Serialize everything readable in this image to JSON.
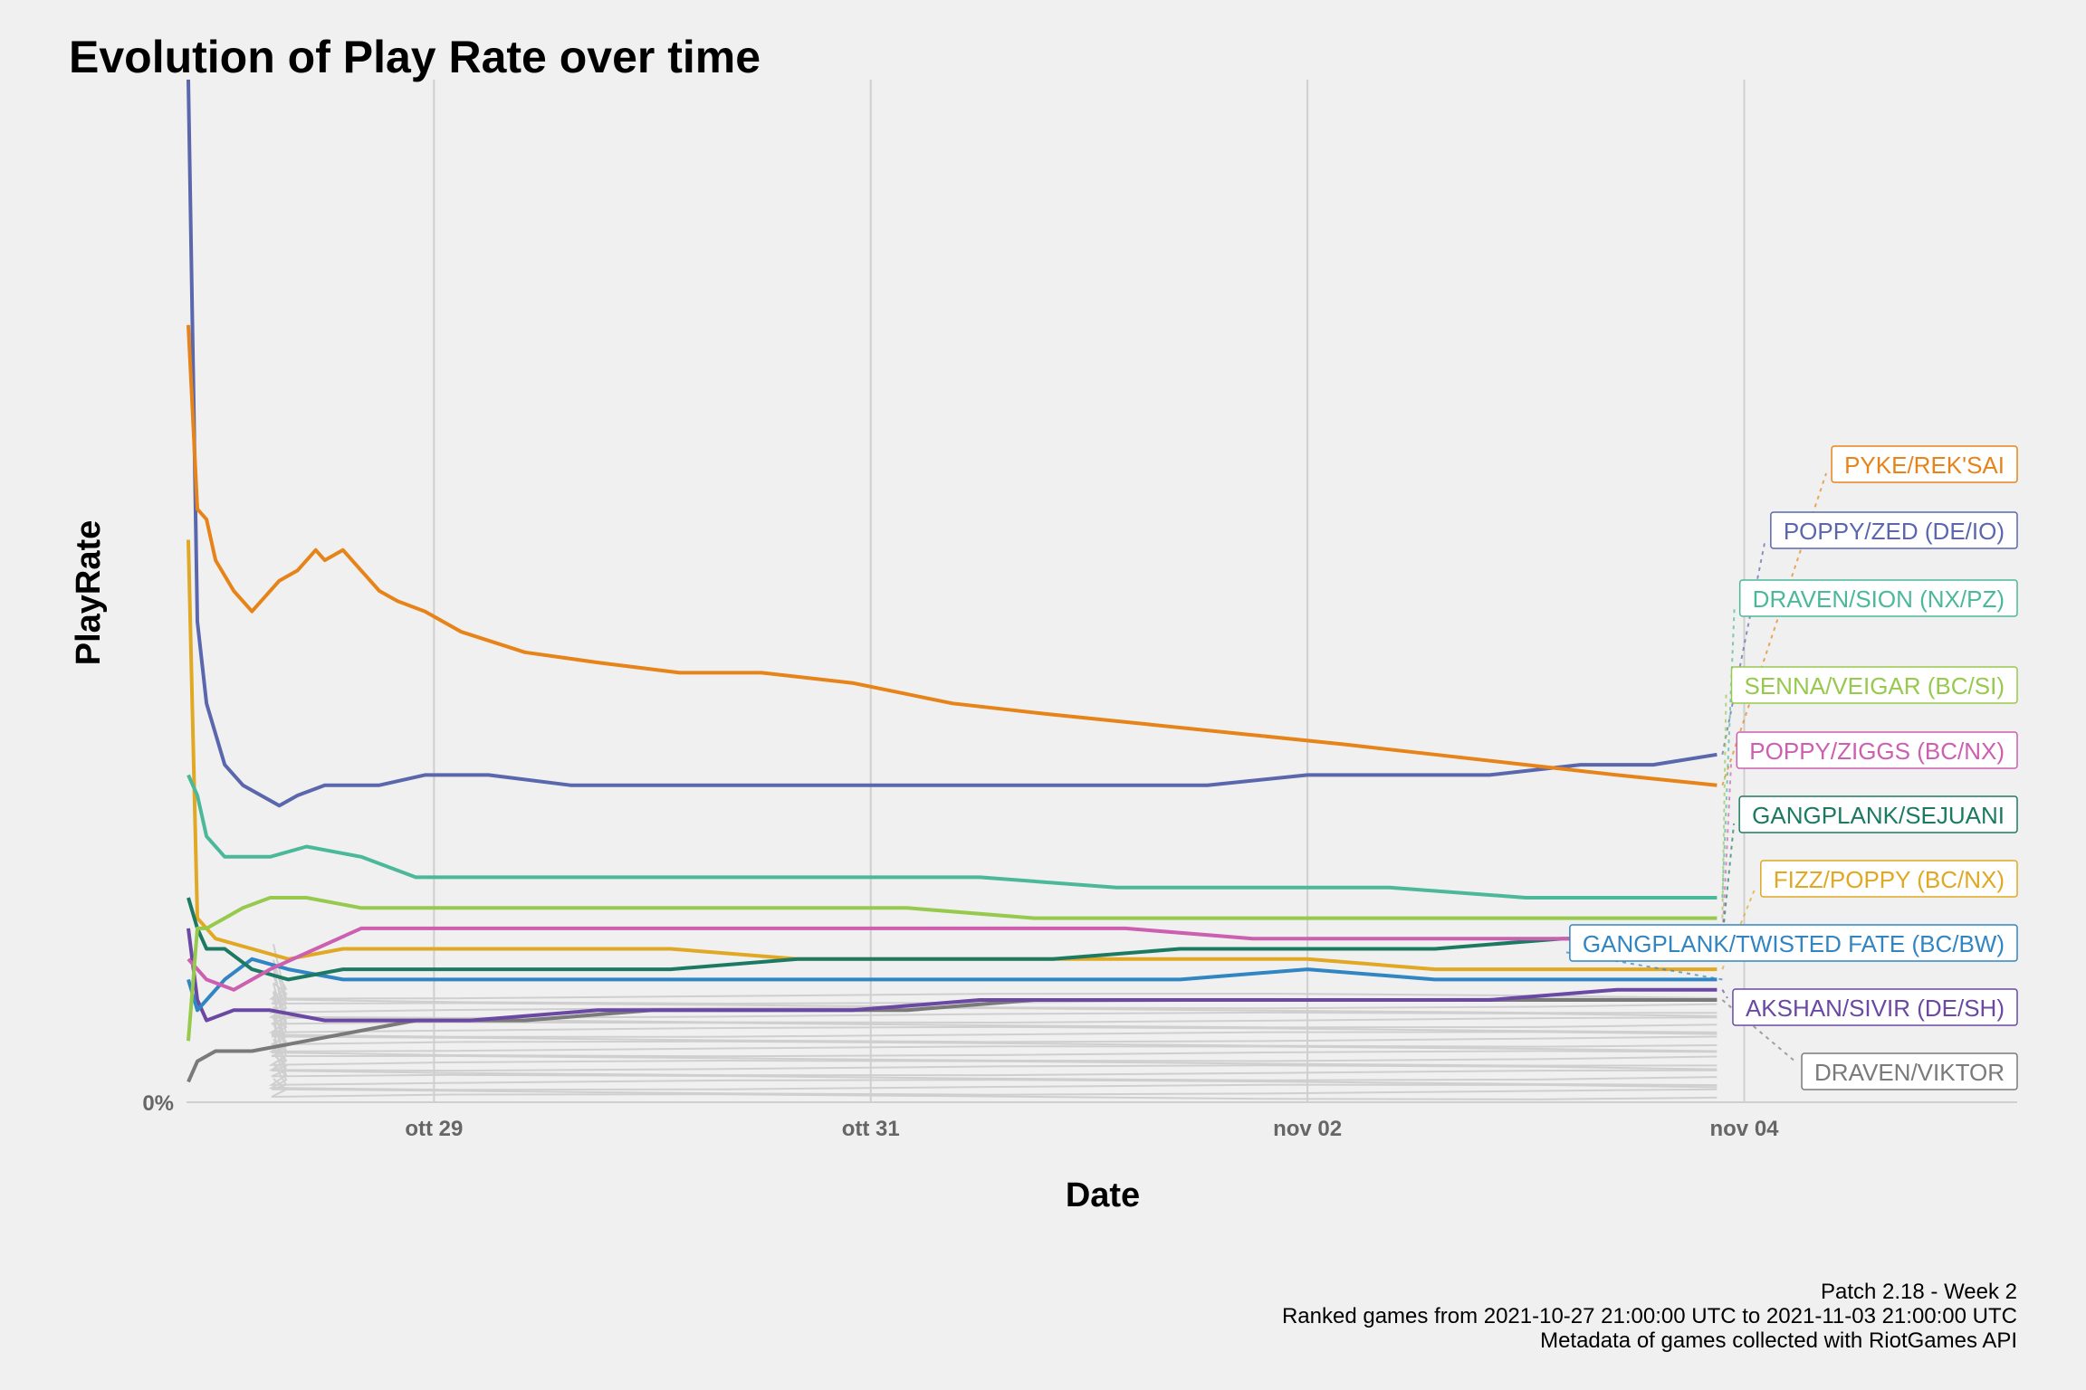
{
  "chart_data": {
    "type": "line",
    "title": "Evolution of Play Rate over time",
    "xlabel": "Date",
    "ylabel": "PlayRate",
    "x_ticks": [
      {
        "date": "2021-10-29",
        "label": "ott 29"
      },
      {
        "date": "2021-10-31",
        "label": "ott 31"
      },
      {
        "date": "2021-11-02",
        "label": "nov 02"
      },
      {
        "date": "2021-11-04",
        "label": "nov 04"
      }
    ],
    "y_ticks": [
      {
        "value": 0,
        "label": "0%"
      }
    ],
    "x_range": [
      "2021-10-27T21:00:00",
      "2021-11-05T06:00:00"
    ],
    "y_range": [
      0,
      1.0
    ],
    "grid": "vertical major gridlines",
    "background_series_color": "#cfcfcf",
    "series": [
      {
        "name": "PYKE/REK'SAI",
        "color": "#e6841a",
        "x": [
          "2021-10-27T21:00:00",
          "2021-10-27T22:00:00",
          "2021-10-27T23:00:00",
          "2021-10-28T00:00:00",
          "2021-10-28T02:00:00",
          "2021-10-28T04:00:00",
          "2021-10-28T07:00:00",
          "2021-10-28T09:00:00",
          "2021-10-28T11:00:00",
          "2021-10-28T12:00:00",
          "2021-10-28T14:00:00",
          "2021-10-28T16:00:00",
          "2021-10-28T18:00:00",
          "2021-10-28T20:00:00",
          "2021-10-28T23:00:00",
          "2021-10-29T03:00:00",
          "2021-10-29T10:00:00",
          "2021-10-29T18:00:00",
          "2021-10-30T03:00:00",
          "2021-10-30T12:00:00",
          "2021-10-30T22:00:00",
          "2021-10-31T09:00:00",
          "2021-10-31T19:00:00",
          "2021-11-01T06:00:00",
          "2021-11-01T17:00:00",
          "2021-11-02T04:00:00",
          "2021-11-02T14:00:00",
          "2021-11-03T00:00:00",
          "2021-11-03T10:00:00",
          "2021-11-03T21:00:00"
        ],
        "y": [
          0.76,
          0.58,
          0.57,
          0.53,
          0.5,
          0.48,
          0.51,
          0.52,
          0.54,
          0.53,
          0.54,
          0.52,
          0.5,
          0.49,
          0.48,
          0.46,
          0.44,
          0.43,
          0.42,
          0.42,
          0.41,
          0.39,
          0.38,
          0.37,
          0.36,
          0.35,
          0.34,
          0.33,
          0.32,
          0.31
        ]
      },
      {
        "name": "POPPY/ZED (DE/IO)",
        "color": "#5a67ad",
        "x": [
          "2021-10-27T21:00:00",
          "2021-10-27T22:00:00",
          "2021-10-27T23:00:00",
          "2021-10-28T01:00:00",
          "2021-10-28T03:00:00",
          "2021-10-28T05:00:00",
          "2021-10-28T07:00:00",
          "2021-10-28T09:00:00",
          "2021-10-28T12:00:00",
          "2021-10-28T18:00:00",
          "2021-10-28T23:00:00",
          "2021-10-29T06:00:00",
          "2021-10-29T15:00:00",
          "2021-10-30T00:00:00",
          "2021-10-30T10:00:00",
          "2021-10-30T20:00:00",
          "2021-10-31T06:00:00",
          "2021-10-31T16:00:00",
          "2021-11-01T03:00:00",
          "2021-11-01T13:00:00",
          "2021-11-02T00:00:00",
          "2021-11-02T10:00:00",
          "2021-11-02T20:00:00",
          "2021-11-03T06:00:00",
          "2021-11-03T14:00:00",
          "2021-11-03T21:00:00"
        ],
        "y": [
          1.0,
          0.47,
          0.39,
          0.33,
          0.31,
          0.3,
          0.29,
          0.3,
          0.31,
          0.31,
          0.32,
          0.32,
          0.31,
          0.31,
          0.31,
          0.31,
          0.31,
          0.31,
          0.31,
          0.31,
          0.32,
          0.32,
          0.32,
          0.33,
          0.33,
          0.34
        ]
      },
      {
        "name": "DRAVEN/SION (NX/PZ)",
        "color": "#4cb89a",
        "x": [
          "2021-10-27T21:00:00",
          "2021-10-27T22:00:00",
          "2021-10-27T23:00:00",
          "2021-10-28T01:00:00",
          "2021-10-28T03:00:00",
          "2021-10-28T06:00:00",
          "2021-10-28T10:00:00",
          "2021-10-28T16:00:00",
          "2021-10-28T22:00:00",
          "2021-10-29T06:00:00",
          "2021-10-29T18:00:00",
          "2021-10-30T08:00:00",
          "2021-10-30T22:00:00",
          "2021-10-31T12:00:00",
          "2021-11-01T03:00:00",
          "2021-11-01T18:00:00",
          "2021-11-02T09:00:00",
          "2021-11-03T00:00:00",
          "2021-11-03T21:00:00"
        ],
        "y": [
          0.32,
          0.3,
          0.26,
          0.24,
          0.24,
          0.24,
          0.25,
          0.24,
          0.22,
          0.22,
          0.22,
          0.22,
          0.22,
          0.22,
          0.21,
          0.21,
          0.21,
          0.2,
          0.2
        ]
      },
      {
        "name": "SENNA/VEIGAR (BC/SI)",
        "color": "#97c94c",
        "x": [
          "2021-10-27T21:00:00",
          "2021-10-27T22:00:00",
          "2021-10-27T23:00:00",
          "2021-10-28T01:00:00",
          "2021-10-28T03:00:00",
          "2021-10-28T06:00:00",
          "2021-10-28T10:00:00",
          "2021-10-28T16:00:00",
          "2021-10-28T23:00:00",
          "2021-10-29T10:00:00",
          "2021-10-30T00:00:00",
          "2021-10-30T14:00:00",
          "2021-10-31T04:00:00",
          "2021-10-31T18:00:00",
          "2021-11-01T08:00:00",
          "2021-11-01T22:00:00",
          "2021-11-02T12:00:00",
          "2021-11-03T02:00:00",
          "2021-11-03T21:00:00"
        ],
        "y": [
          0.06,
          0.17,
          0.17,
          0.18,
          0.19,
          0.2,
          0.2,
          0.19,
          0.19,
          0.19,
          0.19,
          0.19,
          0.19,
          0.18,
          0.18,
          0.18,
          0.18,
          0.18,
          0.18
        ]
      },
      {
        "name": "POPPY/ZIGGS (BC/NX)",
        "color": "#cc5fb0",
        "x": [
          "2021-10-27T21:00:00",
          "2021-10-27T23:00:00",
          "2021-10-28T02:00:00",
          "2021-10-28T06:00:00",
          "2021-10-28T11:00:00",
          "2021-10-28T16:00:00",
          "2021-10-28T22:00:00",
          "2021-10-29T08:00:00",
          "2021-10-29T20:00:00",
          "2021-10-30T10:00:00",
          "2021-10-31T00:00:00",
          "2021-10-31T14:00:00",
          "2021-11-01T04:00:00",
          "2021-11-01T18:00:00",
          "2021-11-02T08:00:00",
          "2021-11-02T22:00:00",
          "2021-11-03T21:00:00"
        ],
        "y": [
          0.14,
          0.12,
          0.11,
          0.13,
          0.15,
          0.17,
          0.17,
          0.17,
          0.17,
          0.17,
          0.17,
          0.17,
          0.17,
          0.16,
          0.16,
          0.16,
          0.16
        ]
      },
      {
        "name": "GANGPLANK/SEJUANI",
        "color": "#1d7a62",
        "x": [
          "2021-10-27T21:00:00",
          "2021-10-27T22:00:00",
          "2021-10-27T23:00:00",
          "2021-10-28T01:00:00",
          "2021-10-28T04:00:00",
          "2021-10-28T08:00:00",
          "2021-10-28T14:00:00",
          "2021-10-28T22:00:00",
          "2021-10-29T12:00:00",
          "2021-10-30T02:00:00",
          "2021-10-30T16:00:00",
          "2021-10-31T06:00:00",
          "2021-10-31T20:00:00",
          "2021-11-01T10:00:00",
          "2021-11-02T00:00:00",
          "2021-11-02T14:00:00",
          "2021-11-03T04:00:00",
          "2021-11-03T21:00:00"
        ],
        "y": [
          0.2,
          0.17,
          0.15,
          0.15,
          0.13,
          0.12,
          0.13,
          0.13,
          0.13,
          0.13,
          0.14,
          0.14,
          0.14,
          0.15,
          0.15,
          0.15,
          0.16,
          0.16
        ]
      },
      {
        "name": "FIZZ/POPPY (BC/NX)",
        "color": "#e0a823",
        "x": [
          "2021-10-27T21:00:00",
          "2021-10-27T22:00:00",
          "2021-10-28T00:00:00",
          "2021-10-28T04:00:00",
          "2021-10-28T08:00:00",
          "2021-10-28T14:00:00",
          "2021-10-28T22:00:00",
          "2021-10-29T12:00:00",
          "2021-10-30T02:00:00",
          "2021-10-30T16:00:00",
          "2021-10-31T06:00:00",
          "2021-10-31T20:00:00",
          "2021-11-01T10:00:00",
          "2021-11-02T00:00:00",
          "2021-11-02T14:00:00",
          "2021-11-03T04:00:00",
          "2021-11-03T21:00:00"
        ],
        "y": [
          0.55,
          0.18,
          0.16,
          0.15,
          0.14,
          0.15,
          0.15,
          0.15,
          0.15,
          0.14,
          0.14,
          0.14,
          0.14,
          0.14,
          0.13,
          0.13,
          0.13
        ]
      },
      {
        "name": "GANGPLANK/TWISTED FATE (BC/BW)",
        "color": "#3185c2",
        "x": [
          "2021-10-27T21:00:00",
          "2021-10-27T22:00:00",
          "2021-10-27T23:00:00",
          "2021-10-28T01:00:00",
          "2021-10-28T04:00:00",
          "2021-10-28T08:00:00",
          "2021-10-28T14:00:00",
          "2021-10-28T22:00:00",
          "2021-10-29T12:00:00",
          "2021-10-30T02:00:00",
          "2021-10-30T16:00:00",
          "2021-10-31T06:00:00",
          "2021-10-31T20:00:00",
          "2021-11-01T10:00:00",
          "2021-11-02T00:00:00",
          "2021-11-02T14:00:00",
          "2021-11-03T04:00:00",
          "2021-11-03T21:00:00"
        ],
        "y": [
          0.12,
          0.09,
          0.1,
          0.12,
          0.14,
          0.13,
          0.12,
          0.12,
          0.12,
          0.12,
          0.12,
          0.12,
          0.12,
          0.12,
          0.13,
          0.12,
          0.12,
          0.12
        ]
      },
      {
        "name": "AKSHAN/SIVIR (DE/SH)",
        "color": "#6a48a3",
        "x": [
          "2021-10-27T21:00:00",
          "2021-10-27T22:00:00",
          "2021-10-27T23:00:00",
          "2021-10-28T02:00:00",
          "2021-10-28T06:00:00",
          "2021-10-28T12:00:00",
          "2021-10-28T18:00:00",
          "2021-10-29T04:00:00",
          "2021-10-29T18:00:00",
          "2021-10-30T08:00:00",
          "2021-10-30T22:00:00",
          "2021-10-31T12:00:00",
          "2021-11-01T02:00:00",
          "2021-11-01T16:00:00",
          "2021-11-02T06:00:00",
          "2021-11-02T20:00:00",
          "2021-11-03T10:00:00",
          "2021-11-03T21:00:00"
        ],
        "y": [
          0.17,
          0.1,
          0.08,
          0.09,
          0.09,
          0.08,
          0.08,
          0.08,
          0.09,
          0.09,
          0.09,
          0.1,
          0.1,
          0.1,
          0.1,
          0.1,
          0.11,
          0.11
        ]
      },
      {
        "name": "DRAVEN/VIKTOR",
        "color": "#7a7a7a",
        "x": [
          "2021-10-27T21:00:00",
          "2021-10-27T22:00:00",
          "2021-10-28T00:00:00",
          "2021-10-28T04:00:00",
          "2021-10-28T10:00:00",
          "2021-10-28T16:00:00",
          "2021-10-28T22:00:00",
          "2021-10-29T10:00:00",
          "2021-10-30T00:00:00",
          "2021-10-30T14:00:00",
          "2021-10-31T04:00:00",
          "2021-10-31T18:00:00",
          "2021-11-01T08:00:00",
          "2021-11-01T22:00:00",
          "2021-11-02T12:00:00",
          "2021-11-03T02:00:00",
          "2021-11-03T21:00:00"
        ],
        "y": [
          0.02,
          0.04,
          0.05,
          0.05,
          0.06,
          0.07,
          0.08,
          0.08,
          0.09,
          0.09,
          0.09,
          0.1,
          0.1,
          0.1,
          0.1,
          0.1,
          0.1
        ]
      }
    ]
  },
  "caption": {
    "line1": "Patch 2.18 - Week 2",
    "line2": "Ranked games from 2021-10-27 21:00:00 UTC to 2021-11-03 21:00:00 UTC",
    "line3": "Metadata of games collected with RiotGames API"
  }
}
